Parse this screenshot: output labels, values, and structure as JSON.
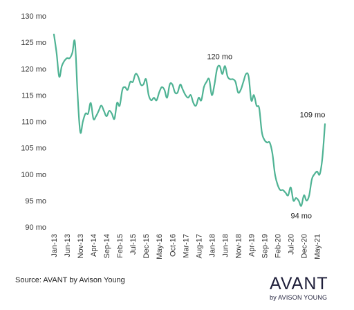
{
  "chart_data": {
    "type": "line",
    "title": "",
    "xlabel": "",
    "ylabel": "",
    "ylim": [
      90,
      130
    ],
    "yticks": [
      90,
      95,
      100,
      105,
      110,
      115,
      120,
      125,
      130
    ],
    "ytick_labels": [
      "90 mo",
      "95 mo",
      "100 mo",
      "105 mo",
      "110 mo",
      "115 mo",
      "120 mo",
      "125 mo",
      "130 mo"
    ],
    "xtick_labels": [
      "Jan-13",
      "Jun-13",
      "Nov-13",
      "Apr-14",
      "Sep-14",
      "Feb-15",
      "Jul-15",
      "Dec-15",
      "May-16",
      "Oct-16",
      "Mar-17",
      "Aug-17",
      "Jan-18",
      "Jun-18",
      "Nov-18",
      "Apr-19",
      "Sep-19",
      "Feb-20",
      "Jul-20",
      "Dec-20",
      "May-21"
    ],
    "grid": false,
    "line_color": "#4fb394",
    "series": [
      {
        "start": "Jan-13",
        "frequency": "monthly",
        "values": [
          126.5,
          123,
          118.5,
          120.5,
          121.5,
          122,
          122,
          123,
          125,
          115,
          108,
          110,
          111.5,
          111.5,
          113.5,
          110.5,
          111,
          112,
          113,
          112,
          111,
          112,
          111.5,
          110.5,
          113.5,
          113,
          116,
          116.5,
          116,
          117.5,
          117.5,
          119,
          118.5,
          117,
          117,
          118,
          115,
          114,
          114.5,
          114,
          115.5,
          116.5,
          116,
          114.5,
          117,
          117,
          115.5,
          115.5,
          117,
          116,
          115,
          114.5,
          115,
          113.5,
          113,
          114.5,
          114,
          116.5,
          117.5,
          118,
          115,
          117,
          120,
          120.5,
          119,
          120.5,
          118.5,
          118,
          118,
          117.5,
          115.5,
          116,
          117.5,
          119,
          118.5,
          114,
          115,
          113,
          112.5,
          108,
          106.5,
          106,
          106,
          104,
          100,
          98,
          97,
          97,
          96.5,
          96,
          97.5,
          95,
          95.5,
          95,
          94,
          96,
          95,
          96,
          99,
          100,
          100.5,
          100,
          103,
          109.5
        ]
      }
    ],
    "annotations": [
      {
        "text": "120 mo",
        "at_month_index": 63,
        "y": 120.5
      },
      {
        "text": "109 mo",
        "at_month_index": 103,
        "y": 109.5
      },
      {
        "text": "94 mo",
        "at_month_index": 94,
        "y": 94
      }
    ]
  },
  "footer": {
    "source": "Source: AVANT by Avison Young"
  },
  "logo": {
    "word": "AVANT",
    "sub": "by AVISON YOUNG"
  }
}
